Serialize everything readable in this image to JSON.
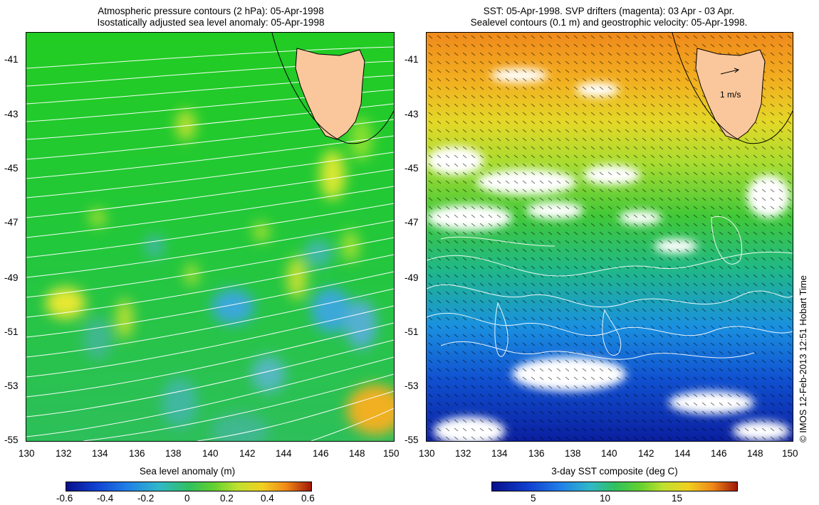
{
  "left_panel": {
    "title_line1": "Atmospheric pressure contours (2 hPa): 05-Apr-1998",
    "title_line2": "Isostatically adjusted sea level anomaly: 05-Apr-1998",
    "lat_labels": [
      "-41",
      "-43",
      "-45",
      "-47",
      "-49",
      "-51",
      "-53",
      "-55"
    ],
    "lon_labels": [
      "130",
      "132",
      "134",
      "136",
      "138",
      "140",
      "142",
      "144",
      "146",
      "148",
      "150"
    ],
    "colorbar_title": "Sea level anomaly (m)",
    "colorbar_ticks": [
      "-0.6",
      "-0.4",
      "-0.2",
      "0",
      "0.2",
      "0.4",
      "0.6"
    ],
    "colorbar_range": [
      -0.6,
      0.6
    ]
  },
  "right_panel": {
    "title_line1": "SST: 05-Apr-1998. SVP drifters (magenta): 03 Apr - 03 Apr.",
    "title_line2": "Sealevel contours (0.1 m) and geostrophic velocity: 05-Apr-1998.",
    "lat_labels": [
      "-41",
      "-43",
      "-45",
      "-47",
      "-49",
      "-51",
      "-53",
      "-55"
    ],
    "lon_labels": [
      "130",
      "132",
      "134",
      "136",
      "138",
      "140",
      "142",
      "144",
      "146",
      "148",
      "150"
    ],
    "velocity_scale_label": "1 m/s",
    "colorbar_title": "3-day SST composite (deg C)",
    "colorbar_ticks": [
      "5",
      "10",
      "15"
    ],
    "colorbar_range": [
      2,
      19
    ]
  },
  "credit": "© IMOS 12-Feb-2013 12:51 Hobart Time",
  "colors": {
    "land": "#f9c79b",
    "contour": "#ffffff",
    "cloud_mask": "#ffffff"
  }
}
